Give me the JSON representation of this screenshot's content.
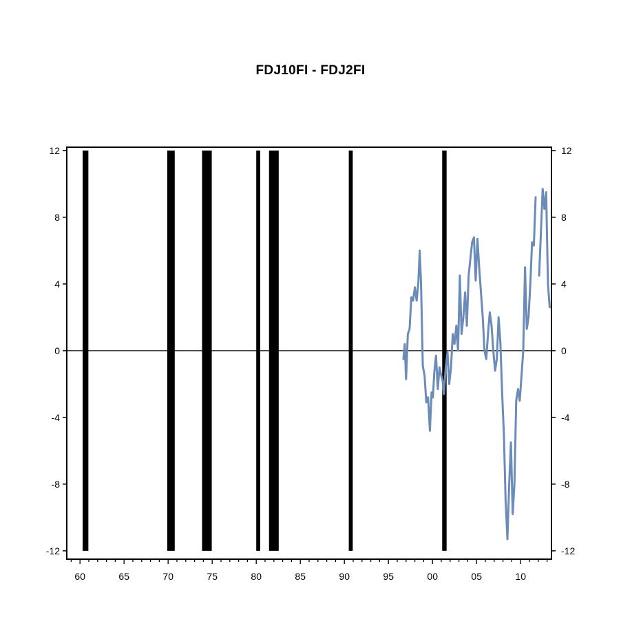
{
  "chart_data": {
    "type": "line",
    "title": "FDJ10FI - FDJ2FI",
    "xlabel": "",
    "ylabel": "",
    "xlim": [
      1958.5,
      2013.5
    ],
    "ylim": [
      -12.5,
      12.2
    ],
    "x_ticks": [
      1960,
      1965,
      1970,
      1975,
      1980,
      1985,
      1990,
      1995,
      2000,
      2005,
      2010
    ],
    "x_tick_labels": [
      "60",
      "65",
      "70",
      "75",
      "80",
      "85",
      "90",
      "95",
      "00",
      "05",
      "10"
    ],
    "y_ticks": [
      12,
      8,
      4,
      0,
      -4,
      -8,
      -12
    ],
    "y_tick_labels": [
      "12",
      "8",
      "4",
      "0",
      "-4",
      "-8",
      "-12"
    ],
    "grid": false,
    "zero_line": true,
    "line_color": "#6b8cb8",
    "shade_color": "#000000",
    "recession_bands": [
      [
        1960.3,
        1960.95
      ],
      [
        1969.9,
        1970.75
      ],
      [
        1973.85,
        1974.95
      ],
      [
        1980.0,
        1980.45
      ],
      [
        1981.45,
        1982.55
      ],
      [
        1990.5,
        1990.95
      ],
      [
        2001.1,
        2001.6
      ]
    ],
    "series": [
      {
        "x": [
          1996.7,
          1996.85,
          1997.0,
          1997.2,
          1997.4,
          1997.6,
          1997.8,
          1998.0,
          1998.2,
          1998.4,
          1998.55,
          1998.7,
          1998.9,
          1999.1,
          1999.3,
          1999.5,
          1999.7,
          1999.9,
          2000.05,
          2000.2,
          2000.4,
          2000.6,
          2000.8,
          2001.0,
          2001.15,
          2001.3,
          2001.5,
          2001.7,
          2001.9,
          2002.1,
          2002.3,
          2002.5,
          2002.7,
          2002.9,
          2003.1,
          2003.3,
          2003.5,
          2003.7,
          2003.9,
          2004.1,
          2004.3,
          2004.5,
          2004.7,
          2004.9,
          2005.1,
          2005.3,
          2005.5,
          2005.7,
          2005.9,
          2006.1,
          2006.3,
          2006.5,
          2006.7,
          2006.9,
          2007.1,
          2007.3,
          2007.5,
          2007.7,
          2007.9,
          2008.1,
          2008.3,
          2008.5,
          2008.7,
          2008.9,
          2009.1,
          2009.3,
          2009.5,
          2009.7,
          2009.9,
          2010.1,
          2010.3,
          2010.5,
          2010.7,
          2010.9,
          2011.1,
          2011.3,
          2011.5,
          2011.7,
          2011.9,
          2012.1,
          2012.3,
          2012.5,
          2012.7,
          2012.9,
          2013.1,
          2013.3
        ],
        "y": [
          -0.5,
          0.4,
          -1.7,
          1.0,
          1.3,
          3.2,
          3.0,
          3.8,
          3.0,
          4.1,
          6.0,
          4.0,
          -0.9,
          -1.5,
          -3.1,
          -2.8,
          -4.8,
          -2.5,
          -2.8,
          -1.3,
          -0.3,
          -2.3,
          -1.0,
          -1.5,
          -1.8,
          -2.6,
          -1.0,
          -0.1,
          -2.0,
          -1.0,
          1.0,
          0.4,
          1.5,
          0.0,
          4.5,
          1.0,
          2.0,
          3.5,
          1.5,
          4.5,
          5.5,
          6.5,
          6.8,
          4.2,
          6.7,
          5.0,
          3.5,
          2.0,
          0.0,
          -0.5,
          1.0,
          2.3,
          1.5,
          0.0,
          -1.2,
          -0.5,
          2.0,
          0.5,
          -2.5,
          -5.0,
          -9.0,
          -11.3,
          -8.0,
          -5.5,
          -9.8,
          -8.0,
          -3.0,
          -2.3,
          -3.0,
          -1.5,
          0.0,
          5.0,
          1.3,
          2.0,
          4.0,
          6.5,
          6.3,
          9.2,
          null,
          4.5,
          7.0,
          9.7,
          8.5,
          9.5,
          4.0,
          2.6
        ]
      }
    ]
  }
}
